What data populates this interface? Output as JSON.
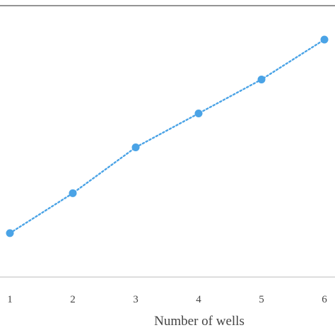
{
  "chart_data": {
    "type": "line",
    "title": "",
    "xlabel": "Number of wells",
    "ylabel": "",
    "x": [
      1,
      2,
      3,
      4,
      5,
      6
    ],
    "series": [
      {
        "values": [
          0.0,
          1.0,
          2.15,
          3.0,
          3.85,
          4.85
        ]
      }
    ],
    "xlim": [
      1,
      6
    ],
    "ylim": [
      -1.1,
      5.7
    ],
    "grid": false,
    "legend": "none",
    "line_style": "dotted",
    "marker": "circle",
    "series_color": "#4aa3e6",
    "axis_color": "#444444"
  }
}
